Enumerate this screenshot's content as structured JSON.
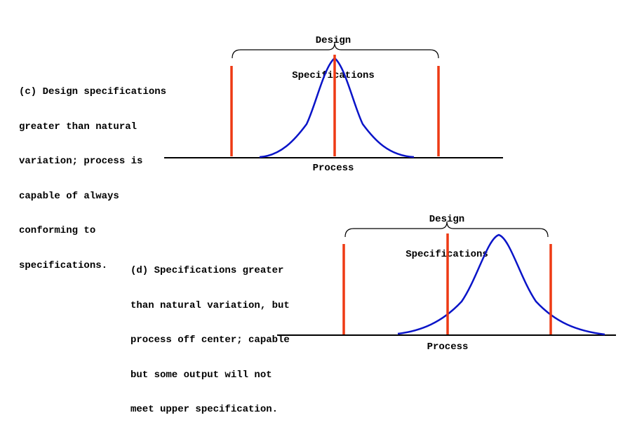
{
  "colors": {
    "spec_line": "#ee3a14",
    "curve": "#0a14c8",
    "axis": "#000000"
  },
  "panel_c": {
    "spec_title_line1": "Design",
    "spec_title_line2": "Specifications",
    "caption": [
      "(c) Design specifications",
      "greater than natural",
      "variation; process is",
      "capable of always",
      "conforming to",
      "specifications."
    ],
    "axis_label": "Process"
  },
  "panel_d": {
    "spec_title_line1": "Design",
    "spec_title_line2": "Specifications",
    "caption": [
      "(d) Specifications greater",
      "than natural variation, but",
      "process off center; capable",
      "but some output will not",
      "meet upper specification."
    ],
    "axis_label": "Process"
  }
}
